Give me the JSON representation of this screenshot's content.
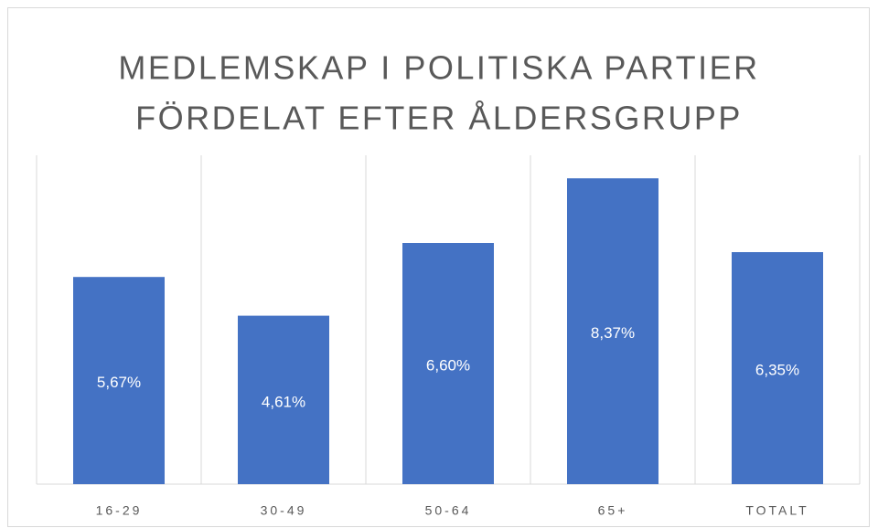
{
  "chart_data": {
    "type": "bar",
    "title": [
      "MEDLEMSKAP I POLITISKA PARTIER",
      "FÖRDELAT EFTER ÅLDERSGRUPP"
    ],
    "categories": [
      "16-29",
      "30-49",
      "50-64",
      "65+",
      "TOTALT"
    ],
    "values": [
      5.67,
      4.61,
      6.6,
      8.37,
      6.35
    ],
    "value_labels": [
      "5,67%",
      "4,61%",
      "6,60%",
      "8,37%",
      "6,35%"
    ],
    "color": "#4472c4",
    "ylim": [
      0,
      9
    ]
  }
}
